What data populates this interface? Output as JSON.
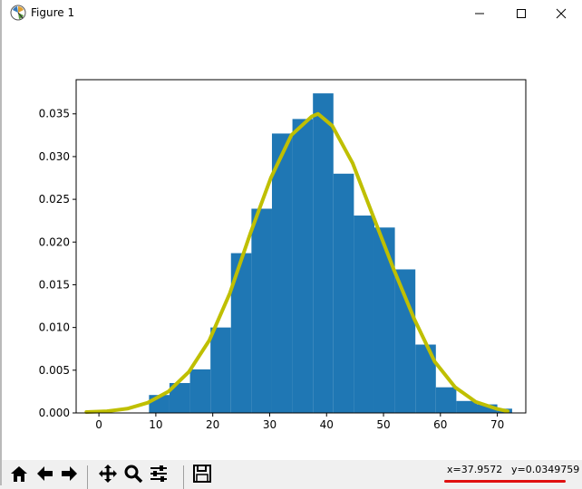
{
  "window": {
    "title": "Figure 1",
    "minimize_icon": "minimize-icon",
    "maximize_icon": "maximize-icon",
    "close_icon": "close-icon"
  },
  "toolbar": {
    "buttons": [
      {
        "name": "home",
        "icon": "home-icon"
      },
      {
        "name": "back",
        "icon": "back-arrow-icon"
      },
      {
        "name": "forward",
        "icon": "forward-arrow-icon"
      },
      {
        "name": "pan",
        "icon": "pan-icon"
      },
      {
        "name": "zoom",
        "icon": "magnifier-icon"
      },
      {
        "name": "configure-subplots",
        "icon": "sliders-icon"
      },
      {
        "name": "save",
        "icon": "floppy-disk-icon"
      }
    ]
  },
  "status": {
    "x_readout": "x=37.9572",
    "y_readout": "y=0.0349759",
    "annotation_color": "#e01010"
  },
  "chart_data": {
    "type": "bar",
    "title": "",
    "xlabel": "",
    "ylabel": "",
    "xlim": [
      -4,
      75
    ],
    "ylim": [
      0,
      0.039
    ],
    "xticks": [
      0,
      10,
      20,
      30,
      40,
      50,
      60,
      70
    ],
    "yticks": [
      0.0,
      0.005,
      0.01,
      0.015,
      0.02,
      0.025,
      0.03,
      0.035
    ],
    "ytick_labels": [
      "0.000",
      "0.005",
      "0.010",
      "0.015",
      "0.020",
      "0.025",
      "0.030",
      "0.035"
    ],
    "grid": false,
    "histogram": {
      "color": "#1f77b4",
      "bin_edges": [
        8.8,
        12.4,
        16.0,
        19.6,
        23.2,
        26.8,
        30.4,
        34.0,
        37.6,
        41.2,
        44.8,
        48.4,
        52.0,
        55.6,
        59.2,
        62.8,
        66.4,
        70.0,
        72.6
      ],
      "values": [
        0.0021,
        0.0035,
        0.0051,
        0.01,
        0.0187,
        0.0239,
        0.0327,
        0.0344,
        0.0374,
        0.028,
        0.0231,
        0.0217,
        0.0168,
        0.008,
        0.003,
        0.0014,
        0.001,
        0.0005
      ]
    },
    "curve": {
      "color": "#bfbf00",
      "x": [
        -2.2,
        1.4,
        5.0,
        8.6,
        12.2,
        15.8,
        19.4,
        23.0,
        26.6,
        30.2,
        33.8,
        37.4,
        38.5,
        41.0,
        44.6,
        48.2,
        51.8,
        55.4,
        59.0,
        62.6,
        66.2,
        69.8,
        71.8
      ],
      "y": [
        0.0001,
        0.0002,
        0.0005,
        0.0012,
        0.0025,
        0.0048,
        0.0085,
        0.014,
        0.021,
        0.0275,
        0.0325,
        0.0347,
        0.035,
        0.0336,
        0.0292,
        0.023,
        0.0168,
        0.011,
        0.006,
        0.003,
        0.0013,
        0.0005,
        0.0002
      ]
    }
  }
}
